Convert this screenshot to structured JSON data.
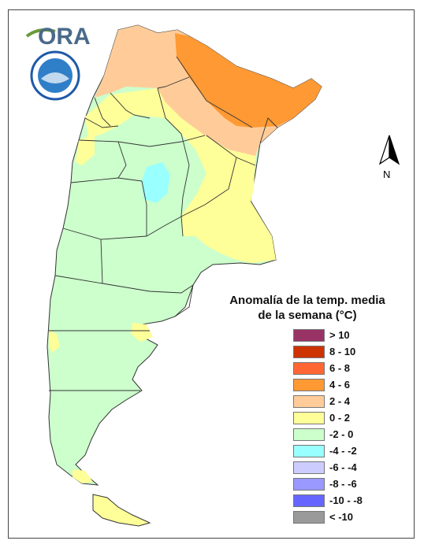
{
  "logo": {
    "text": "ORA"
  },
  "north_arrow": {
    "label": "N"
  },
  "legend": {
    "title_line1": "Anomalía de la temp. media",
    "title_line2": "de la semana (°C)",
    "classes": [
      {
        "label": "> 10",
        "color": "#993366"
      },
      {
        "label": "8 - 10",
        "color": "#cc3300"
      },
      {
        "label": "6 - 8",
        "color": "#ff6633"
      },
      {
        "label": "4 - 6",
        "color": "#ff9933"
      },
      {
        "label": "2 - 4",
        "color": "#ffcc99"
      },
      {
        "label": "0 - 2",
        "color": "#ffff99"
      },
      {
        "label": "-2 - 0",
        "color": "#ccffcc"
      },
      {
        "label": "-4 - -2",
        "color": "#99ffff"
      },
      {
        "label": "-6 - -4",
        "color": "#ccccff"
      },
      {
        "label": "-8 - -6",
        "color": "#9999ff"
      },
      {
        "label": "-10 - -8",
        "color": "#6666ff"
      },
      {
        "label": "< -10",
        "color": "#999999"
      }
    ]
  }
}
